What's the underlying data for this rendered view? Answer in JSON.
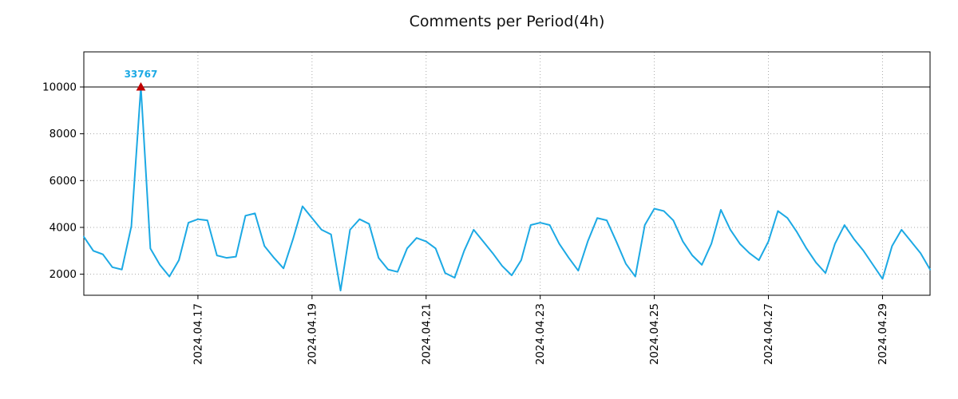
{
  "colors": {
    "line": "#1CA9E4",
    "marker": "#C00000",
    "annotation": "#1CA9E4",
    "grid": "#AAAAAA",
    "axis": "#000000",
    "cap_line": "#000000",
    "background": "#FFFFFF",
    "title_color": "#111111"
  },
  "chart_data": {
    "type": "line",
    "title": "Comments per Period(4h)",
    "xlabel": "",
    "ylabel": "",
    "interval_hours": 4,
    "grid": true,
    "legend": false,
    "ylim": [
      1100,
      11500
    ],
    "clip_max": 10000,
    "y_ticks": [
      {
        "value": 2000,
        "label": "2000"
      },
      {
        "value": 4000,
        "label": "4000"
      },
      {
        "value": 6000,
        "label": "6000"
      },
      {
        "value": 8000,
        "label": "8000"
      },
      {
        "value": 10000,
        "label": "10000"
      }
    ],
    "x_ticks": [
      {
        "index": 12,
        "label": "2024.04.17"
      },
      {
        "index": 24,
        "label": "2024.04.19"
      },
      {
        "index": 36,
        "label": "2024.04.21"
      },
      {
        "index": 48,
        "label": "2024.04.23"
      },
      {
        "index": 60,
        "label": "2024.04.25"
      },
      {
        "index": 72,
        "label": "2024.04.27"
      },
      {
        "index": 84,
        "label": "2024.04.29"
      }
    ],
    "annotation": {
      "text": "33767",
      "value": 33767,
      "index": 6
    },
    "values": [
      3600,
      3000,
      2850,
      2300,
      2200,
      4050,
      33767,
      3100,
      2400,
      1900,
      2600,
      4200,
      4350,
      4300,
      2800,
      2700,
      2750,
      4500,
      4600,
      3200,
      2700,
      2250,
      3500,
      4900,
      4400,
      3900,
      3700,
      1300,
      3900,
      4350,
      4150,
      2700,
      2200,
      2100,
      3100,
      3550,
      3400,
      3100,
      2050,
      1850,
      3000,
      3900,
      3400,
      2900,
      2350,
      1950,
      2600,
      4100,
      4200,
      4100,
      3300,
      2700,
      2150,
      3400,
      4400,
      4300,
      3400,
      2450,
      1900,
      4100,
      4800,
      4700,
      4300,
      3400,
      2800,
      2400,
      3300,
      4750,
      3900,
      3300,
      2900,
      2600,
      3400,
      4700,
      4400,
      3800,
      3100,
      2500,
      2050,
      3300,
      4100,
      3500,
      3000,
      2400,
      1800,
      3200,
      3900,
      3400,
      2900,
      2200
    ]
  }
}
